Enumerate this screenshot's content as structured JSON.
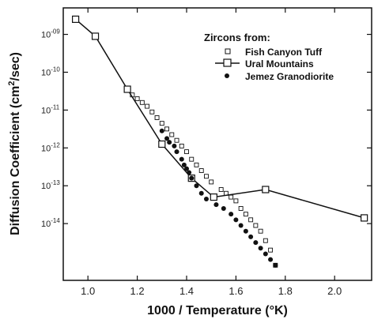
{
  "chart_data": {
    "type": "scatter",
    "title": "",
    "xlabel": "1000 / Temperature (°K)",
    "ylabel_text": "Diffusion Coefficient (cm",
    "ylabel_sup": "2",
    "ylabel_tail": "/sec)",
    "xlim": [
      0.9,
      2.15
    ],
    "ylim_log10": [
      -15.5,
      -8.3
    ],
    "x_ticks": [
      "1.0",
      "1.2",
      "1.4",
      "1.6",
      "1.8",
      "2.0"
    ],
    "x_tick_values": [
      1.0,
      1.2,
      1.4,
      1.6,
      1.8,
      2.0
    ],
    "y_ticks": [
      {
        "base": "10",
        "exp": "-09",
        "log10": -9
      },
      {
        "base": "10",
        "exp": "-10",
        "log10": -10
      },
      {
        "base": "10",
        "exp": "-11",
        "log10": -11
      },
      {
        "base": "10",
        "exp": "-12",
        "log10": -12
      },
      {
        "base": "10",
        "exp": "-13",
        "log10": -13
      },
      {
        "base": "10",
        "exp": "-14",
        "log10": -14
      }
    ],
    "legend_title": "Zircons from:",
    "legend_position": "top-right",
    "series": [
      {
        "name": "Fish Canyon Tuff",
        "marker": "open-square",
        "line": false,
        "points": [
          [
            1.18,
            -10.6
          ],
          [
            1.2,
            -10.7
          ],
          [
            1.22,
            -10.8
          ],
          [
            1.24,
            -10.9
          ],
          [
            1.26,
            -11.05
          ],
          [
            1.28,
            -11.2
          ],
          [
            1.3,
            -11.35
          ],
          [
            1.32,
            -11.5
          ],
          [
            1.34,
            -11.65
          ],
          [
            1.36,
            -11.8
          ],
          [
            1.38,
            -11.95
          ],
          [
            1.4,
            -12.1
          ],
          [
            1.42,
            -12.3
          ],
          [
            1.44,
            -12.45
          ],
          [
            1.46,
            -12.6
          ],
          [
            1.48,
            -12.75
          ],
          [
            1.5,
            -12.9
          ],
          [
            1.54,
            -13.1
          ],
          [
            1.56,
            -13.2
          ],
          [
            1.58,
            -13.3
          ],
          [
            1.6,
            -13.4
          ],
          [
            1.62,
            -13.6
          ],
          [
            1.64,
            -13.75
          ],
          [
            1.66,
            -13.9
          ],
          [
            1.68,
            -14.05
          ],
          [
            1.7,
            -14.2
          ],
          [
            1.72,
            -14.45
          ],
          [
            1.74,
            -14.7
          ],
          [
            1.76,
            -15.1
          ]
        ]
      },
      {
        "name": "Ural Mountains",
        "marker": "open-square",
        "line": true,
        "points": [
          [
            0.95,
            -8.6
          ],
          [
            1.03,
            -9.05
          ],
          [
            1.16,
            -10.45
          ],
          [
            1.3,
            -11.9
          ],
          [
            1.42,
            -12.8
          ],
          [
            1.51,
            -13.3
          ],
          [
            1.72,
            -13.1
          ],
          [
            2.12,
            -13.85
          ]
        ]
      },
      {
        "name": "Jemez Granodiorite",
        "marker": "filled-circle",
        "line": false,
        "points": [
          [
            1.3,
            -11.55
          ],
          [
            1.32,
            -11.75
          ],
          [
            1.33,
            -11.85
          ],
          [
            1.35,
            -11.95
          ],
          [
            1.36,
            -12.1
          ],
          [
            1.38,
            -12.3
          ],
          [
            1.39,
            -12.45
          ],
          [
            1.4,
            -12.55
          ],
          [
            1.41,
            -12.65
          ],
          [
            1.42,
            -12.8
          ],
          [
            1.44,
            -13.0
          ],
          [
            1.46,
            -13.2
          ],
          [
            1.48,
            -13.35
          ],
          [
            1.52,
            -13.5
          ],
          [
            1.55,
            -13.6
          ],
          [
            1.58,
            -13.75
          ],
          [
            1.6,
            -13.9
          ],
          [
            1.62,
            -14.05
          ],
          [
            1.64,
            -14.2
          ],
          [
            1.66,
            -14.35
          ],
          [
            1.68,
            -14.5
          ],
          [
            1.7,
            -14.65
          ],
          [
            1.72,
            -14.8
          ],
          [
            1.74,
            -14.95
          ],
          [
            1.76,
            -15.1
          ]
        ]
      }
    ]
  }
}
